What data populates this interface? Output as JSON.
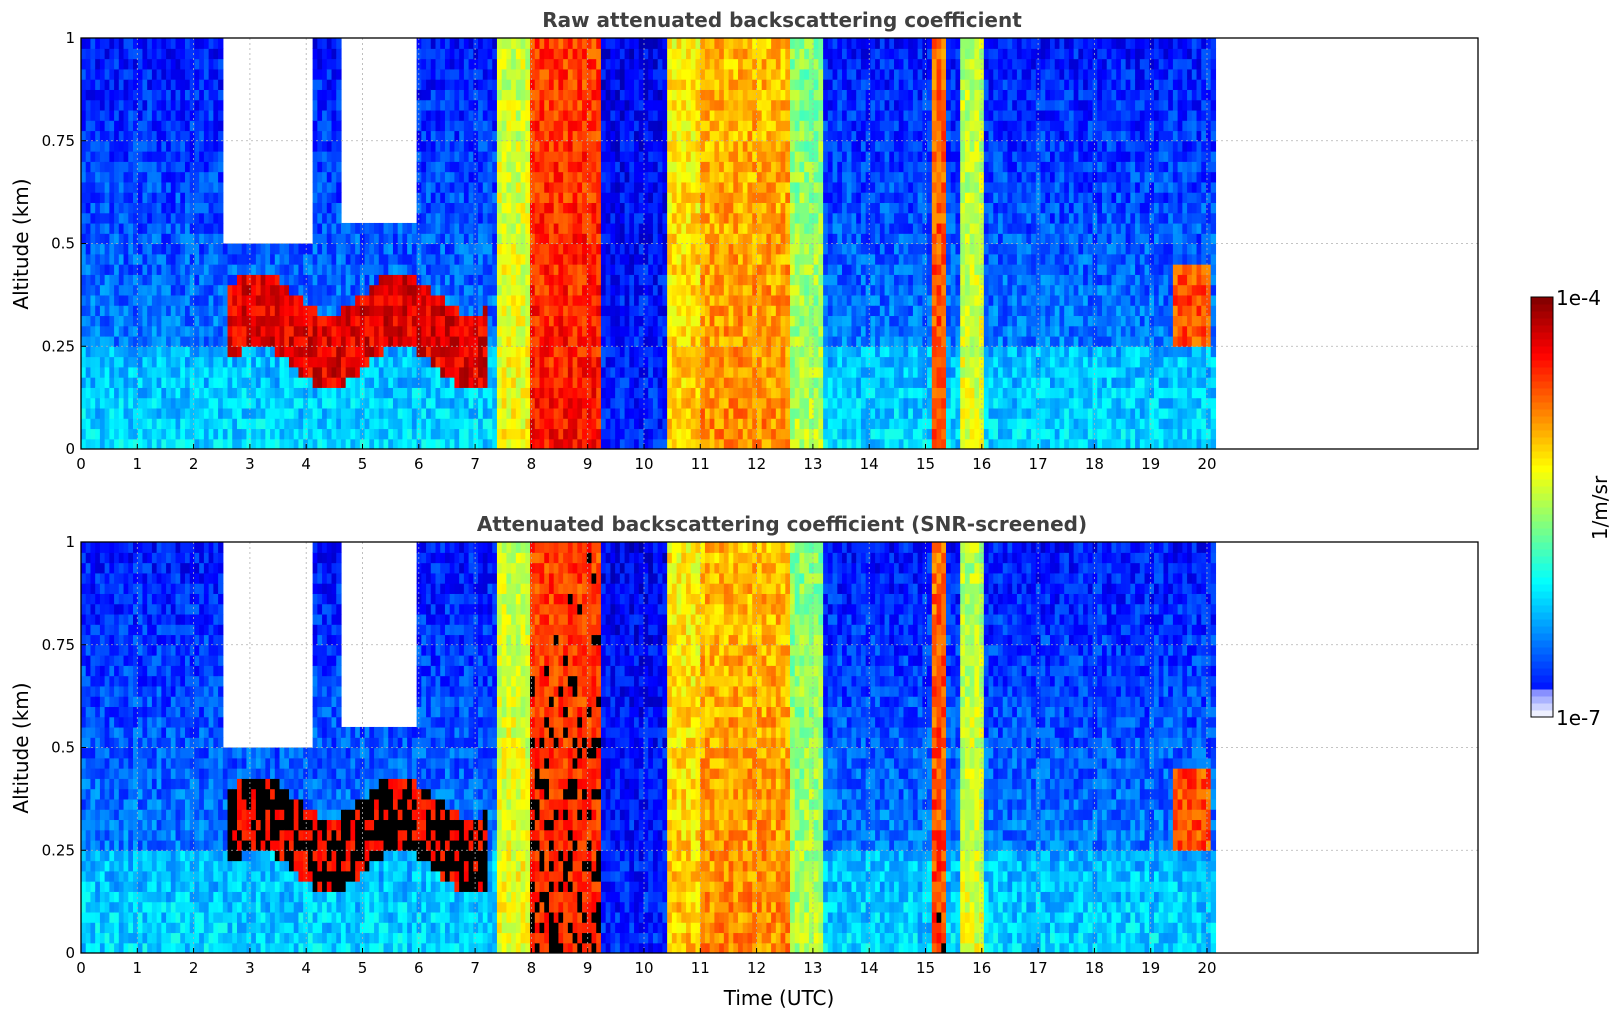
{
  "chart_data": [
    {
      "type": "heatmap",
      "title": "Raw attenuated backscattering coefficient",
      "ylabel": "Altitude (km)",
      "xlabel": "",
      "xlim": [
        0,
        24
      ],
      "ylim": [
        0,
        1
      ],
      "data_end_hour": 20.15,
      "grid": true,
      "x_ticks": [
        "0",
        "1",
        "2",
        "3",
        "4",
        "5",
        "6",
        "7",
        "8",
        "9",
        "10",
        "11",
        "12",
        "13",
        "14",
        "15",
        "16",
        "17",
        "18",
        "19",
        "20"
      ],
      "y_ticks": [
        "0",
        "0.25",
        "0.5",
        "0.75",
        "1"
      ],
      "y_tick_values": [
        0,
        0.25,
        0.5,
        0.75,
        1
      ]
    },
    {
      "type": "heatmap",
      "title": "Attenuated backscattering coefficient (SNR-screened)",
      "ylabel": "Altitude (km)",
      "xlabel": "Time (UTC)",
      "xlim": [
        0,
        24
      ],
      "ylim": [
        0,
        1
      ],
      "data_end_hour": 20.15,
      "grid": true,
      "x_ticks": [
        "0",
        "1",
        "2",
        "3",
        "4",
        "5",
        "6",
        "7",
        "8",
        "9",
        "10",
        "11",
        "12",
        "13",
        "14",
        "15",
        "16",
        "17",
        "18",
        "19",
        "20"
      ],
      "y_ticks": [
        "0",
        "0.25",
        "0.5",
        "0.75",
        "1"
      ],
      "y_tick_values": [
        0,
        0.25,
        0.5,
        0.75,
        1
      ]
    }
  ],
  "colorbar": {
    "label": "1/m/sr",
    "max_label": "1e-4",
    "min_label": "1e-7",
    "colormap": "jet",
    "scale": "log"
  },
  "colors": {
    "title": "#404040",
    "grid": "#b0b0b0",
    "clear_air": "#ffffff",
    "screened_dark": "#000000"
  }
}
